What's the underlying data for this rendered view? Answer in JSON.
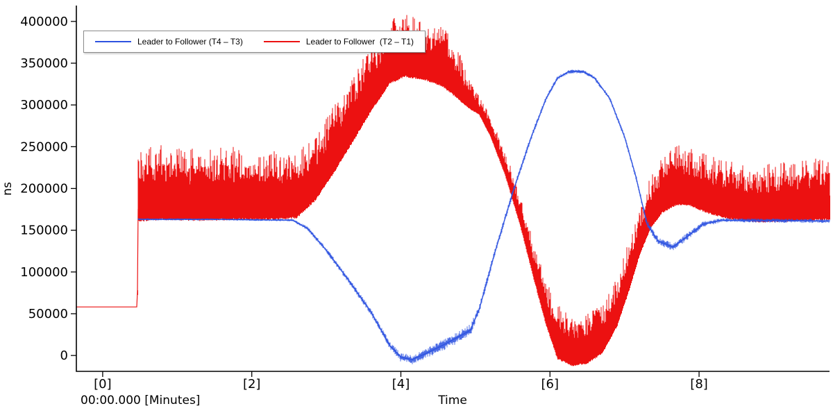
{
  "chart_data": {
    "type": "line",
    "title": "",
    "ylabel": "ns",
    "xlabel": "Time",
    "x_unit_label": "00:00.000 [Minutes]",
    "x_units": "Minutes",
    "y_units": "ns",
    "grid": false,
    "legend_position": "top-left-inside",
    "xlim": [
      -0.353,
      9.75
    ],
    "ylim": [
      -19000,
      419000
    ],
    "xticks": {
      "values": [
        0,
        2,
        4,
        6,
        8
      ],
      "labels": [
        "[0]",
        "[2]",
        "[4]",
        "[6]",
        "[8]"
      ]
    },
    "yticks": {
      "values": [
        0,
        50000,
        100000,
        150000,
        200000,
        250000,
        300000,
        350000,
        400000
      ],
      "labels": [
        "0",
        "50000",
        "100000",
        "150000",
        "200000",
        "250000",
        "300000",
        "350000",
        "400000"
      ]
    },
    "series": [
      {
        "name": "Leader to Follower (T4 - T3)",
        "legend_label": "Leader to Follower (T4 – T3)",
        "color": "#2d52e0",
        "style": "noisy-line",
        "points_format": "[x_minutes, value_ns, noise_amplitude_ns]",
        "points": [
          [
            0.47,
            163000,
            1200
          ],
          [
            1.5,
            163000,
            1200
          ],
          [
            2.55,
            162000,
            1500
          ],
          [
            2.75,
            152000,
            2500
          ],
          [
            3.0,
            126000,
            3000
          ],
          [
            3.3,
            90000,
            3500
          ],
          [
            3.6,
            52000,
            4000
          ],
          [
            3.85,
            12000,
            5000
          ],
          [
            4.0,
            -2000,
            5500
          ],
          [
            4.15,
            -5000,
            5500
          ],
          [
            4.35,
            3000,
            6000
          ],
          [
            4.6,
            14000,
            7000
          ],
          [
            4.93,
            30000,
            7500
          ],
          [
            5.05,
            55000,
            5000
          ],
          [
            5.25,
            120000,
            4500
          ],
          [
            5.5,
            195000,
            4000
          ],
          [
            5.75,
            262000,
            3500
          ],
          [
            5.95,
            308000,
            3000
          ],
          [
            6.1,
            332000,
            2500
          ],
          [
            6.25,
            340000,
            2200
          ],
          [
            6.45,
            340000,
            2200
          ],
          [
            6.6,
            332000,
            2500
          ],
          [
            6.8,
            308000,
            2500
          ],
          [
            7.0,
            262000,
            3000
          ],
          [
            7.15,
            215000,
            3500
          ],
          [
            7.3,
            158000,
            4500
          ],
          [
            7.45,
            137000,
            5000
          ],
          [
            7.65,
            130000,
            5000
          ],
          [
            7.85,
            143000,
            4500
          ],
          [
            8.05,
            157000,
            3500
          ],
          [
            8.3,
            162000,
            2500
          ],
          [
            9.75,
            161000,
            2500
          ]
        ]
      },
      {
        "name": "Leader to Follower (T2 - T1)",
        "legend_label": "Leader to Follower  (T2 – T1)",
        "color": "#ec1111",
        "style": "noisy-band",
        "envelope_format": "[x_minutes, low_ns, high_ns]",
        "envelope": [
          [
            -0.353,
            58000,
            58500
          ],
          [
            0.465,
            58000,
            58500
          ],
          [
            0.475,
            160000,
            248000
          ],
          [
            0.8,
            162000,
            252000
          ],
          [
            1.3,
            161000,
            247000
          ],
          [
            1.8,
            162000,
            250000
          ],
          [
            2.3,
            162000,
            246000
          ],
          [
            2.6,
            164000,
            243000
          ],
          [
            2.85,
            185000,
            262000
          ],
          [
            3.1,
            218000,
            300000
          ],
          [
            3.35,
            255000,
            338000
          ],
          [
            3.6,
            292000,
            372000
          ],
          [
            3.85,
            325000,
            402000
          ],
          [
            4.05,
            333000,
            412000
          ],
          [
            4.3,
            330000,
            402000
          ],
          [
            4.55,
            322000,
            396000
          ],
          [
            4.75,
            308000,
            372000
          ],
          [
            4.9,
            296000,
            335000
          ],
          [
            5.05,
            288000,
            310000
          ],
          [
            5.2,
            262000,
            288000
          ],
          [
            5.4,
            215000,
            245000
          ],
          [
            5.6,
            155000,
            192000
          ],
          [
            5.8,
            85000,
            130000
          ],
          [
            5.95,
            35000,
            90000
          ],
          [
            6.1,
            -5000,
            60000
          ],
          [
            6.3,
            -13000,
            52000
          ],
          [
            6.5,
            -10000,
            52000
          ],
          [
            6.7,
            2000,
            62000
          ],
          [
            6.9,
            35000,
            95000
          ],
          [
            7.05,
            75000,
            135000
          ],
          [
            7.2,
            120000,
            175000
          ],
          [
            7.35,
            152000,
            215000
          ],
          [
            7.5,
            170000,
            238000
          ],
          [
            7.7,
            180000,
            255000
          ],
          [
            7.9,
            178000,
            250000
          ],
          [
            8.1,
            170000,
            242000
          ],
          [
            8.4,
            163000,
            233000
          ],
          [
            8.8,
            159000,
            228000
          ],
          [
            9.2,
            160000,
            233000
          ],
          [
            9.75,
            162000,
            238000
          ]
        ]
      }
    ]
  }
}
